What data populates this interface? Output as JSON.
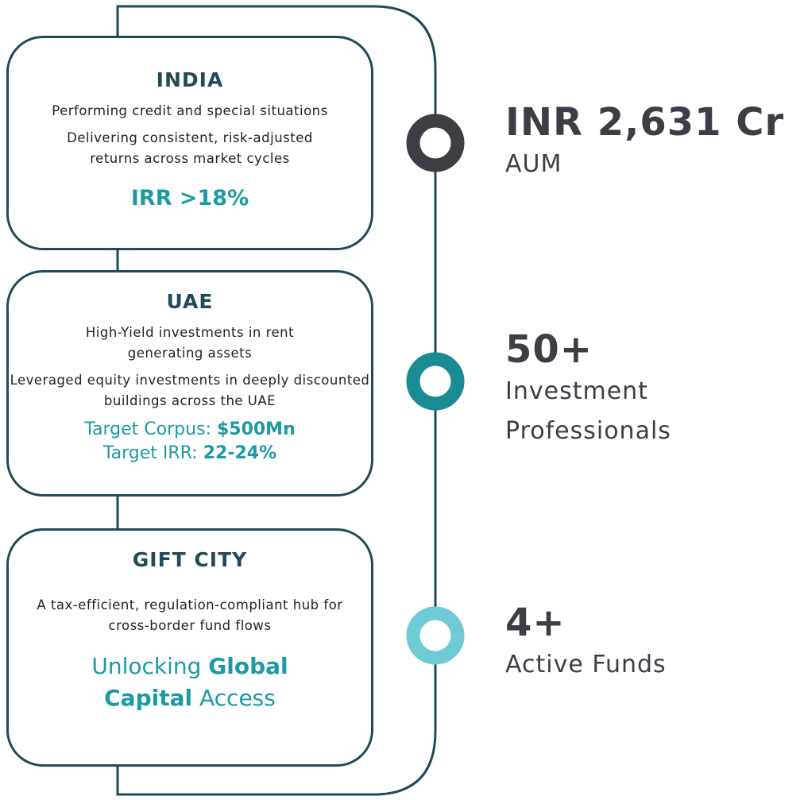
{
  "cards": [
    {
      "title": "INDIA",
      "lines": [
        "Performing credit and special situations",
        "Delivering consistent, risk-adjusted returns across market cycles"
      ],
      "highlights": [
        [
          {
            "text": "IRR >18%",
            "bold": true
          }
        ]
      ]
    },
    {
      "title": "UAE",
      "lines": [
        "High-Yield investments in rent generating assets",
        "Leveraged equity investments in deeply discounted buildings across the UAE"
      ],
      "highlights": [
        [
          {
            "text": "Target Corpus: ",
            "bold": false
          },
          {
            "text": "$500Mn",
            "bold": true
          }
        ],
        [
          {
            "text": "Target IRR: ",
            "bold": false
          },
          {
            "text": "22-24%",
            "bold": true
          }
        ]
      ]
    },
    {
      "title": "GIFT CITY",
      "lines": [
        "A tax-efficient, regulation-compliant hub for cross-border fund flows"
      ],
      "highlights": [
        [
          {
            "text": "Unlocking ",
            "bold": false
          },
          {
            "text": "Global Capital",
            "bold": true
          },
          {
            "text": " Access",
            "bold": false
          }
        ]
      ]
    }
  ],
  "stats": [
    {
      "value": "INR 2,631 Cr",
      "label": "AUM"
    },
    {
      "value": "50+",
      "label": "Investment Professionals"
    },
    {
      "value": "4+",
      "label": "Active Funds"
    }
  ]
}
